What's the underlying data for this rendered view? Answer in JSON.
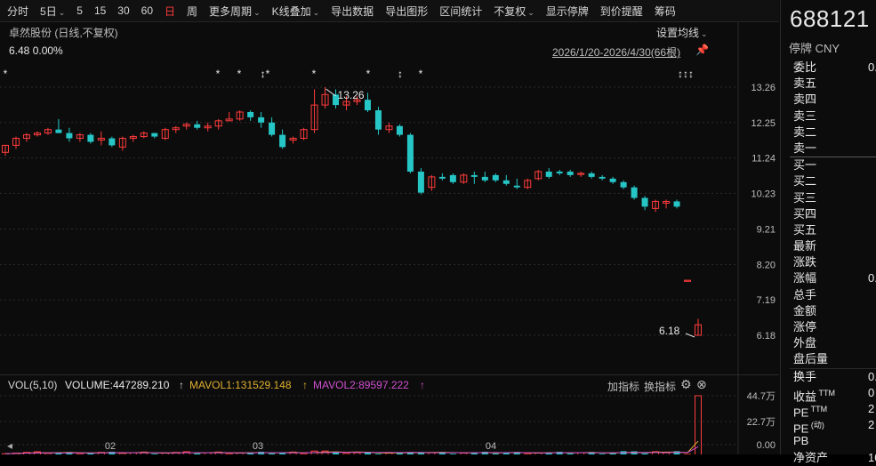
{
  "toolbar": {
    "items": [
      "分时",
      "5日",
      "5",
      "15",
      "30",
      "60",
      "日",
      "周",
      "更多周期",
      "K线叠加",
      "导出数据",
      "导出图形",
      "区间统计",
      "不复权",
      "显示停牌",
      "到价提醒",
      "筹码"
    ],
    "active_index": 6,
    "dropdown_indices": [
      1,
      8,
      9,
      13
    ]
  },
  "chart": {
    "stock_title": "卓然股份 (日线,不复权)",
    "settings_label": "设置均线",
    "price_info": "6.48  0.00%",
    "date_range": "2026/1/20-2026/4/30(66根)",
    "y_ticks": [
      "13.26",
      "12.25",
      "11.24",
      "10.23",
      "9.21",
      "8.20",
      "7.19",
      "6.18"
    ],
    "high_label": "13.26",
    "low_label": "6.18",
    "event_markers": [
      "*",
      "*",
      "*",
      "↕*",
      "*",
      "*",
      "↕",
      "*",
      "↕↕↕"
    ],
    "x_ticks": [
      "02",
      "03",
      "04"
    ],
    "up_color": "#ff3b3b",
    "down_color": "#26c6c6"
  },
  "chart_data": {
    "type": "candlestick",
    "y_axis_range": [
      6.18,
      13.26
    ],
    "candles": [
      [
        11.4,
        11.6,
        11.3,
        11.6
      ],
      [
        11.6,
        11.85,
        11.5,
        11.8
      ],
      [
        11.8,
        11.95,
        11.7,
        11.9
      ],
      [
        11.9,
        12.0,
        11.85,
        11.95
      ],
      [
        11.95,
        12.1,
        11.9,
        12.05
      ],
      [
        12.05,
        12.35,
        11.95,
        11.95
      ],
      [
        11.95,
        12.1,
        11.7,
        11.8
      ],
      [
        11.8,
        11.95,
        11.7,
        11.9
      ],
      [
        11.9,
        11.95,
        11.65,
        11.7
      ],
      [
        11.75,
        12.0,
        11.6,
        11.8
      ],
      [
        11.8,
        11.85,
        11.55,
        11.6
      ],
      [
        11.55,
        11.85,
        11.45,
        11.8
      ],
      [
        11.8,
        11.9,
        11.7,
        11.85
      ],
      [
        11.85,
        12.0,
        11.8,
        11.95
      ],
      [
        11.95,
        11.95,
        11.8,
        11.85
      ],
      [
        11.8,
        12.1,
        11.75,
        12.05
      ],
      [
        12.05,
        12.15,
        11.95,
        12.1
      ],
      [
        12.15,
        12.25,
        12.05,
        12.2
      ],
      [
        12.2,
        12.3,
        12.05,
        12.1
      ],
      [
        12.1,
        12.25,
        12.0,
        12.15
      ],
      [
        12.15,
        12.35,
        12.05,
        12.3
      ],
      [
        12.3,
        12.55,
        12.3,
        12.35
      ],
      [
        12.35,
        12.6,
        12.3,
        12.55
      ],
      [
        12.55,
        12.6,
        12.3,
        12.4
      ],
      [
        12.4,
        12.55,
        12.1,
        12.25
      ],
      [
        12.25,
        12.4,
        11.85,
        11.9
      ],
      [
        11.9,
        12.05,
        11.5,
        11.55
      ],
      [
        11.75,
        11.85,
        11.65,
        11.8
      ],
      [
        11.8,
        12.1,
        11.75,
        12.05
      ],
      [
        12.05,
        13.2,
        11.95,
        12.75
      ],
      [
        12.75,
        13.26,
        12.65,
        13.05
      ],
      [
        13.05,
        13.2,
        12.65,
        12.75
      ],
      [
        12.75,
        13.0,
        12.6,
        12.85
      ],
      [
        12.85,
        13.0,
        12.75,
        12.9
      ],
      [
        12.9,
        13.1,
        12.55,
        12.6
      ],
      [
        12.6,
        12.7,
        11.9,
        12.05
      ],
      [
        12.05,
        12.25,
        11.95,
        12.15
      ],
      [
        12.15,
        12.2,
        11.85,
        11.9
      ],
      [
        11.9,
        11.95,
        10.8,
        10.85
      ],
      [
        10.85,
        10.95,
        10.2,
        10.25
      ],
      [
        10.4,
        10.75,
        10.3,
        10.7
      ],
      [
        10.7,
        10.8,
        10.6,
        10.65
      ],
      [
        10.75,
        10.8,
        10.5,
        10.55
      ],
      [
        10.55,
        10.8,
        10.5,
        10.75
      ],
      [
        10.75,
        10.85,
        10.5,
        10.7
      ],
      [
        10.7,
        10.85,
        10.55,
        10.6
      ],
      [
        10.75,
        10.8,
        10.55,
        10.6
      ],
      [
        10.6,
        10.75,
        10.45,
        10.5
      ],
      [
        10.45,
        10.65,
        10.35,
        10.4
      ],
      [
        10.4,
        10.65,
        10.35,
        10.6
      ],
      [
        10.65,
        10.9,
        10.6,
        10.85
      ],
      [
        10.85,
        10.95,
        10.65,
        10.7
      ],
      [
        10.85,
        10.9,
        10.75,
        10.8
      ],
      [
        10.85,
        10.9,
        10.7,
        10.75
      ],
      [
        10.8,
        10.85,
        10.7,
        10.8
      ],
      [
        10.8,
        10.85,
        10.65,
        10.7
      ],
      [
        10.7,
        10.75,
        10.6,
        10.65
      ],
      [
        10.65,
        10.7,
        10.5,
        10.55
      ],
      [
        10.55,
        10.6,
        10.35,
        10.4
      ],
      [
        10.4,
        10.45,
        10.05,
        10.1
      ],
      [
        10.1,
        10.15,
        9.75,
        9.85
      ],
      [
        9.8,
        10.05,
        9.7,
        10.0
      ],
      [
        9.95,
        10.05,
        9.8,
        10.0
      ],
      [
        10.0,
        10.05,
        9.8,
        9.85
      ],
      [
        7.75,
        7.75,
        7.75,
        7.75
      ],
      [
        6.18,
        6.65,
        6.18,
        6.48
      ]
    ],
    "volume_label": "VOL(5,10)",
    "volume": "447289.210",
    "mavol1": "131529.148",
    "mavol2": "89597.222",
    "volume_ticks": [
      "44.7万",
      "22.7万",
      "0.00"
    ]
  },
  "volume_header": {
    "vol_label": "VOL(5,10)",
    "volume_text": "VOLUME:447289.210",
    "mavol1_text": "MAVOL1:131529.148",
    "mavol2_text": "MAVOL2:89597.222",
    "add_indicator": "加指标",
    "switch_indicator": "换指标",
    "mavol1_color": "#e0b030",
    "mavol2_color": "#d050d0"
  },
  "right_panel": {
    "code": "688121",
    "status": "停牌  CNY",
    "rows": [
      {
        "label": "委比",
        "value": "0."
      },
      {
        "label": "卖五",
        "value": ""
      },
      {
        "label": "卖四",
        "value": ""
      },
      {
        "label": "卖三",
        "value": ""
      },
      {
        "label": "卖二",
        "value": ""
      },
      {
        "label": "卖一",
        "value": ""
      },
      {
        "label": "买一",
        "value": ""
      },
      {
        "label": "买二",
        "value": ""
      },
      {
        "label": "买三",
        "value": ""
      },
      {
        "label": "买四",
        "value": ""
      },
      {
        "label": "买五",
        "value": ""
      },
      {
        "label": "最新",
        "value": ""
      },
      {
        "label": "涨跌",
        "value": ""
      },
      {
        "label": "涨幅",
        "value": "0."
      },
      {
        "label": "总手",
        "value": ""
      },
      {
        "label": "金额",
        "value": ""
      },
      {
        "label": "涨停",
        "value": ""
      },
      {
        "label": "外盘",
        "value": ""
      },
      {
        "label": "盘后量",
        "value": ""
      },
      {
        "label": "换手",
        "value": "0."
      },
      {
        "label": "收益",
        "sup": "TTM",
        "value": "0"
      },
      {
        "label": "PE",
        "sup": "TTM",
        "value": "2"
      },
      {
        "label": "PE",
        "sup": "(动)",
        "value": "2"
      },
      {
        "label": "PB",
        "value": ""
      },
      {
        "label": "净资产",
        "value": "10"
      }
    ]
  }
}
